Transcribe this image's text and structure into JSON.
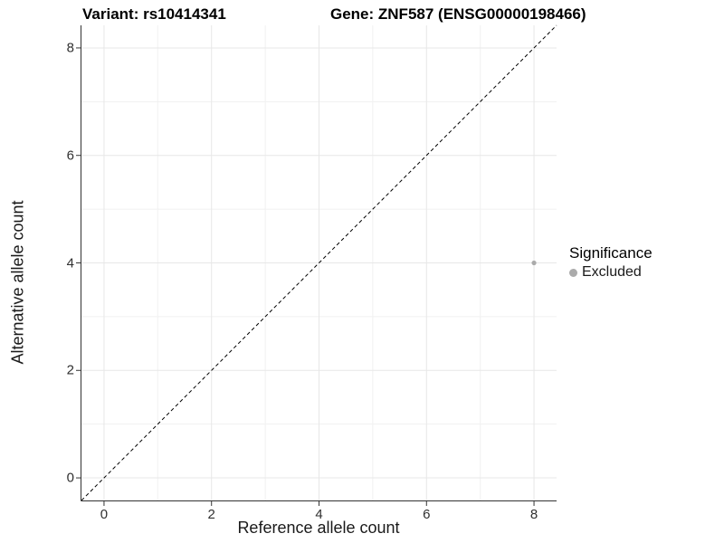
{
  "chart_data": {
    "type": "scatter",
    "title_left": "Variant: rs10414341",
    "title_right": "Gene: ZNF587 (ENSG00000198466)",
    "xlabel": "Reference allele count",
    "ylabel": "Alternative allele count",
    "xlim": [
      -0.42,
      8.42
    ],
    "ylim": [
      -0.42,
      8.42
    ],
    "xticks": [
      0,
      2,
      4,
      6,
      8
    ],
    "yticks": [
      0,
      2,
      4,
      6,
      8
    ],
    "minor_ticks": [
      1,
      3,
      5,
      7
    ],
    "grid": "major and minor, light gray on white",
    "grid_major_color": "#e7e7e7",
    "grid_minor_color": "#f1f1f1",
    "axis_line_color": "#333333",
    "reference_line": {
      "type": "identity",
      "style": "dashed",
      "color": "#000000",
      "from": [
        -0.42,
        -0.42
      ],
      "to": [
        8.42,
        8.42
      ]
    },
    "series": [
      {
        "name": "Excluded",
        "color": "#ababab",
        "points": [
          {
            "x": 8,
            "y": 4
          }
        ]
      }
    ],
    "legend": {
      "title": "Significance",
      "position": "right",
      "items": [
        {
          "label": "Excluded",
          "color": "#ababab"
        }
      ]
    }
  }
}
